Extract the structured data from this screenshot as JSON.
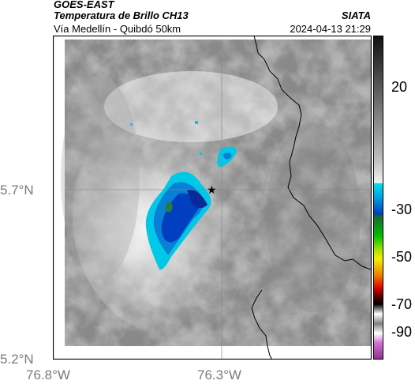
{
  "header": {
    "satellite": "GOES-EAST",
    "product": "Temperatura de Brillo CH13",
    "location": "Vía Medellín - Quibdó 50km",
    "organization": "SIATA",
    "timestamp": "2024-04-13 21:29"
  },
  "map": {
    "lat_ticks": [
      "5.7°N",
      "5.2°N"
    ],
    "lon_ticks": [
      "76.8°W",
      "76.3°W"
    ],
    "marker_icon": "star-icon"
  },
  "colorbar": {
    "ticks": [
      "20",
      "-30",
      "-50",
      "-70",
      "-90"
    ],
    "colors": {
      "warm_top": "#111111",
      "cyan": "#00c8e6",
      "blue": "#0040c0",
      "green": "#00b000",
      "yellow": "#f0f000",
      "red": "#e00000",
      "magenta": "#c040c0"
    }
  }
}
